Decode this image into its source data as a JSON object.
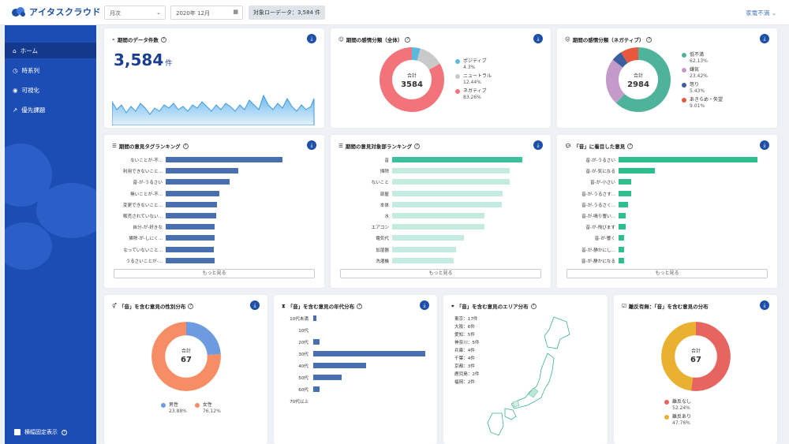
{
  "topbar": {
    "logo_text": "アイタスクラウド",
    "period_select": "月次",
    "month_select": "2020年 12月",
    "target_chip": "対象ローデータ：3,584 件",
    "right_select": "家電不満"
  },
  "sidebar": {
    "items": [
      {
        "label": "ホーム",
        "icon": "home-icon"
      },
      {
        "label": "時系列",
        "icon": "clock-icon"
      },
      {
        "label": "可視化",
        "icon": "eye-icon"
      },
      {
        "label": "優先課題",
        "icon": "trend-icon"
      }
    ],
    "footer": "横幅固定表示"
  },
  "card_count": {
    "title": "期間のデータ件数",
    "value": "3,584",
    "unit": "件"
  },
  "card_sentiment": {
    "title": "期間の感情分類（全体）",
    "center_label": "合計",
    "center_value": "3584",
    "legend": [
      {
        "name": "ポジティブ",
        "pct": "4.3%",
        "color": "#5bb9e0"
      },
      {
        "name": "ニュートラル",
        "pct": "12.44%",
        "color": "#c9c9c9"
      },
      {
        "name": "ネガティブ",
        "pct": "83.26%",
        "color": "#f2737a"
      }
    ]
  },
  "card_negative": {
    "title": "期間の感情分類（ネガティブ）",
    "center_label": "合計",
    "center_value": "2984",
    "legend": [
      {
        "name": "低不満",
        "pct": "62.13%",
        "color": "#4fb39b"
      },
      {
        "name": "嫌気",
        "pct": "23.42%",
        "color": "#c49bc8"
      },
      {
        "name": "怒り",
        "pct": "5.43%",
        "color": "#3e5f9e"
      },
      {
        "name": "あきらめ・失望",
        "pct": "9.01%",
        "color": "#e8583d"
      }
    ]
  },
  "card_tags": {
    "title": "期間の意見タグランキング",
    "more": "もっと見る",
    "labels": [
      "ないことが-不...",
      "利用できないこと...",
      "音-が-うるさい",
      "無いことが-不...",
      "変更できないこと...",
      "販売されていない...",
      "自分-が-好きな",
      "掃除-が-しにく...",
      "なっていないこと...",
      "うるさいことが-..."
    ],
    "values": [
      100,
      62,
      55,
      46,
      44,
      43,
      42,
      42,
      41,
      42
    ]
  },
  "card_objects": {
    "title": "期間の意見対象部ランキング",
    "more": "もっと見る",
    "labels": [
      "音",
      "掃除",
      "ないこと",
      "部屋",
      "本体",
      "水",
      "エアコン",
      "電気代",
      "加湿器",
      "洗濯機"
    ],
    "values": [
      100,
      90,
      90,
      85,
      84,
      71,
      71,
      55,
      49,
      47
    ]
  },
  "card_noise": {
    "title": "「音」に着目した意見",
    "more": "もっと見る",
    "labels": [
      "音-が-うるさい",
      "音-が-気になる",
      "音-が-小さい",
      "音-が-うるさす...",
      "音-が-うるさく...",
      "音-が-鳴り響い...",
      "音-が-飛びます",
      "音-が-響く",
      "音-が-静かにし...",
      "音-が-静かになる"
    ],
    "values": [
      100,
      26,
      9,
      9,
      7,
      5,
      5,
      4,
      4,
      4
    ]
  },
  "card_gender": {
    "title": "「音」を含む意見の性別分布",
    "center_label": "合計",
    "center_value": "67",
    "legend": [
      {
        "name": "男性",
        "pct": "23.88%",
        "color": "#6c9be0"
      },
      {
        "name": "女性",
        "pct": "76.12%",
        "color": "#f68d64"
      }
    ]
  },
  "card_age": {
    "title": "「音」を含む意見の年代分布",
    "labels": [
      "10代未満",
      "10代",
      "20代",
      "30代",
      "40代",
      "50代",
      "60代",
      "70代以上"
    ],
    "values": [
      2,
      0,
      4,
      68,
      32,
      17,
      4,
      0
    ]
  },
  "card_area": {
    "title": "「音」を含む意見のエリア分布",
    "items": [
      "東京：17件",
      "大阪：6件",
      "愛知：5件",
      "神奈川：5件",
      "兵庫：4件",
      "千葉：4件",
      "京都：3件",
      "鹿児島：2件",
      "福岡：2件"
    ]
  },
  "card_violation": {
    "title": "離反有無：「音」を含む意見の分布",
    "center_label": "合計",
    "center_value": "67",
    "legend": [
      {
        "name": "離反なし",
        "pct": "52.24%",
        "color": "#e76560"
      },
      {
        "name": "離反あり",
        "pct": "47.76%",
        "color": "#eab130"
      }
    ]
  }
}
